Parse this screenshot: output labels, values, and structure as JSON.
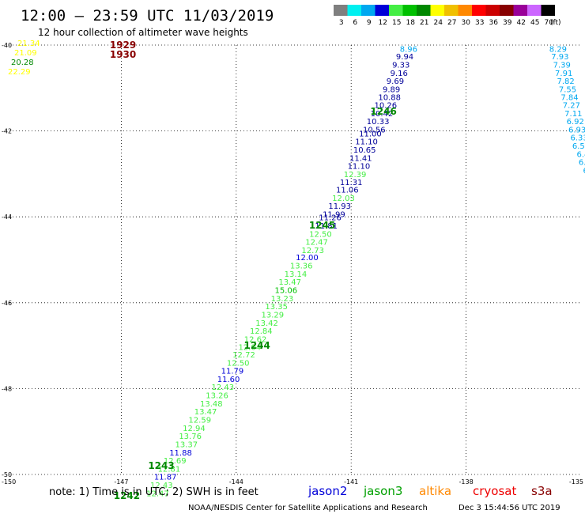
{
  "header": {
    "title": "12:00 – 23:59 UTC 11/03/2019",
    "subtitle": "12 hour collection of altimeter wave heights"
  },
  "legend": {
    "unit": "(ft)",
    "bins": [
      {
        "label": "3",
        "color": "#7f7f7f"
      },
      {
        "label": "6",
        "color": "#00f0f0"
      },
      {
        "label": "9",
        "color": "#00a8f0"
      },
      {
        "label": "12",
        "color": "#0000d8"
      },
      {
        "label": "15",
        "color": "#44ee44"
      },
      {
        "label": "18",
        "color": "#00c000"
      },
      {
        "label": "21",
        "color": "#008800"
      },
      {
        "label": "24",
        "color": "#ffff00"
      },
      {
        "label": "27",
        "color": "#f0c000"
      },
      {
        "label": "30",
        "color": "#ff8800"
      },
      {
        "label": "33",
        "color": "#ff0000"
      },
      {
        "label": "36",
        "color": "#cc0000"
      },
      {
        "label": "39",
        "color": "#880000"
      },
      {
        "label": "42",
        "color": "#990099"
      },
      {
        "label": "45",
        "color": "#cc66ff"
      },
      {
        "label": "70",
        "color": "#000000"
      }
    ]
  },
  "axes": {
    "lat_labels": [
      "-40",
      "-42",
      "-44",
      "-46",
      "-48",
      "-50"
    ],
    "lon_labels": [
      "-150",
      "-147",
      "-144",
      "-141",
      "-138",
      "-135"
    ]
  },
  "chart_data": {
    "type": "scatter",
    "xlabel": "",
    "ylabel": "",
    "xlim": [
      -150,
      -135
    ],
    "ylim": [
      -50,
      -40
    ],
    "series": [
      {
        "color": "#000099",
        "points": [
          {
            "x": -139.5,
            "y": -40.08,
            "label": "8.96",
            "color": "#00a8f0"
          },
          {
            "x": -139.6,
            "y": -40.26,
            "label": "9.94"
          },
          {
            "x": -139.7,
            "y": -40.45,
            "label": "9.33"
          },
          {
            "x": -139.75,
            "y": -40.64,
            "label": "9.16"
          },
          {
            "x": -139.85,
            "y": -40.83,
            "label": "9.69"
          },
          {
            "x": -139.95,
            "y": -41.02,
            "label": "9.89"
          },
          {
            "x": -140.0,
            "y": -41.21,
            "label": "10.88"
          },
          {
            "x": -140.1,
            "y": -41.39,
            "label": "10.26"
          },
          {
            "x": -140.2,
            "y": -41.58,
            "label": "10.42"
          },
          {
            "x": -140.3,
            "y": -41.77,
            "label": "10.33"
          },
          {
            "x": -140.4,
            "y": -41.96,
            "label": "10.56"
          },
          {
            "x": -140.5,
            "y": -42.05,
            "label": "11.00"
          },
          {
            "x": -140.6,
            "y": -42.24,
            "label": "11.10"
          },
          {
            "x": -140.65,
            "y": -42.43,
            "label": "10.65"
          },
          {
            "x": -140.75,
            "y": -42.62,
            "label": "11.41"
          },
          {
            "x": -140.8,
            "y": -42.81,
            "label": "11.10"
          },
          {
            "x": -140.9,
            "y": -43.0,
            "label": "12.39",
            "color": "#44ee44"
          },
          {
            "x": -141.0,
            "y": -43.19,
            "label": "11.31"
          },
          {
            "x": -141.1,
            "y": -43.36,
            "label": "11.06"
          },
          {
            "x": -141.2,
            "y": -43.55,
            "label": "12.03",
            "color": "#44ee44"
          },
          {
            "x": -141.3,
            "y": -43.74,
            "label": "11.93"
          },
          {
            "x": -141.45,
            "y": -43.93,
            "label": "11.99"
          },
          {
            "x": -141.55,
            "y": -44.01,
            "label": "11.26"
          },
          {
            "x": -141.65,
            "y": -44.2,
            "label": "11.81"
          }
        ]
      },
      {
        "color": "#44ee44",
        "points": [
          {
            "x": -141.8,
            "y": -44.39,
            "label": "12.50"
          },
          {
            "x": -141.9,
            "y": -44.58,
            "label": "12.47"
          },
          {
            "x": -142.0,
            "y": -44.77,
            "label": "12.73"
          },
          {
            "x": -142.15,
            "y": -44.94,
            "label": "12.00",
            "color": "#0000d8"
          },
          {
            "x": -142.3,
            "y": -45.13,
            "label": "13.36"
          },
          {
            "x": -142.45,
            "y": -45.32,
            "label": "13.14"
          },
          {
            "x": -142.6,
            "y": -45.51,
            "label": "13.47"
          },
          {
            "x": -142.7,
            "y": -45.7,
            "label": "15.06",
            "color": "#00c000"
          },
          {
            "x": -142.8,
            "y": -45.89,
            "label": "13.23"
          },
          {
            "x": -142.95,
            "y": -46.08,
            "label": "13.35"
          },
          {
            "x": -143.05,
            "y": -46.27,
            "label": "13.29"
          },
          {
            "x": -143.2,
            "y": -46.46,
            "label": "13.42"
          },
          {
            "x": -143.35,
            "y": -46.65,
            "label": "12.84"
          },
          {
            "x": -143.5,
            "y": -46.84,
            "label": "12.62"
          },
          {
            "x": -143.65,
            "y": -47.03,
            "label": "12.04"
          },
          {
            "x": -143.8,
            "y": -47.2,
            "label": "12.72"
          },
          {
            "x": -143.95,
            "y": -47.39,
            "label": "12.50"
          },
          {
            "x": -144.1,
            "y": -47.58,
            "label": "11.79",
            "color": "#0000d8"
          },
          {
            "x": -144.2,
            "y": -47.77,
            "label": "11.60",
            "color": "#0000d8"
          },
          {
            "x": -144.35,
            "y": -47.96,
            "label": "12.43"
          },
          {
            "x": -144.5,
            "y": -48.15,
            "label": "13.26"
          },
          {
            "x": -144.65,
            "y": -48.34,
            "label": "13.48"
          },
          {
            "x": -144.8,
            "y": -48.53,
            "label": "13.47"
          },
          {
            "x": -144.95,
            "y": -48.72,
            "label": "12.59"
          },
          {
            "x": -145.1,
            "y": -48.91,
            "label": "12.94"
          },
          {
            "x": -145.2,
            "y": -49.1,
            "label": "13.76"
          },
          {
            "x": -145.3,
            "y": -49.29,
            "label": "13.37"
          },
          {
            "x": -145.45,
            "y": -49.48,
            "label": "11.88",
            "color": "#0000d8"
          },
          {
            "x": -145.6,
            "y": -49.67,
            "label": "12.69"
          },
          {
            "x": -145.75,
            "y": -49.86,
            "label": "12.81"
          },
          {
            "x": -145.85,
            "y": -50.05,
            "label": "11.87",
            "color": "#0000d8"
          },
          {
            "x": -145.95,
            "y": -50.24,
            "label": "12.43"
          },
          {
            "x": -146.05,
            "y": -50.43,
            "label": "12.47"
          }
        ]
      },
      {
        "color": "#00a8f0",
        "points": [
          {
            "x": -135.6,
            "y": -40.08,
            "label": "8.29"
          },
          {
            "x": -135.55,
            "y": -40.26,
            "label": "7.93"
          },
          {
            "x": -135.5,
            "y": -40.45,
            "label": "7.39"
          },
          {
            "x": -135.45,
            "y": -40.64,
            "label": "7.91"
          },
          {
            "x": -135.4,
            "y": -40.83,
            "label": "7.82"
          },
          {
            "x": -135.35,
            "y": -41.02,
            "label": "7.55"
          },
          {
            "x": -135.3,
            "y": -41.21,
            "label": "7.84"
          },
          {
            "x": -135.25,
            "y": -41.39,
            "label": "7.27"
          },
          {
            "x": -135.2,
            "y": -41.58,
            "label": "7.11"
          },
          {
            "x": -135.15,
            "y": -41.77,
            "label": "6.92"
          },
          {
            "x": -135.1,
            "y": -41.96,
            "label": "6.93"
          },
          {
            "x": -135.05,
            "y": -42.15,
            "label": "6.33"
          },
          {
            "x": -135.0,
            "y": -42.34,
            "label": "6.56"
          },
          {
            "x": -134.95,
            "y": -42.53,
            "label": "6.4"
          },
          {
            "x": -134.9,
            "y": -42.72,
            "label": "6.3"
          },
          {
            "x": -134.85,
            "y": -42.91,
            "label": "6."
          },
          {
            "x": -134.8,
            "y": -43.1,
            "label": "5"
          }
        ]
      }
    ],
    "corner_values": [
      {
        "label": "21.34",
        "color": "#ffff00"
      },
      {
        "label": "21.09",
        "color": "#ffff00"
      },
      {
        "label": "20.28",
        "color": "#008800"
      },
      {
        "label": "22.29",
        "color": "#ffff00"
      }
    ],
    "time_marks": [
      {
        "label": "1929",
        "color": "#880000",
        "x": -147.3,
        "y": -40.0
      },
      {
        "label": "1930",
        "color": "#880000",
        "x": -147.3,
        "y": -40.22
      },
      {
        "label": "1246",
        "color": "#008800",
        "x": -140.5,
        "y": -41.55
      },
      {
        "label": "1245",
        "color": "#008800",
        "x": -142.1,
        "y": -44.2
      },
      {
        "label": "1244",
        "color": "#008800",
        "x": -143.8,
        "y": -47.0
      },
      {
        "label": "1243",
        "color": "#008800",
        "x": -146.3,
        "y": -49.8
      },
      {
        "label": "1242",
        "color": "#008800",
        "x": -147.2,
        "y": -50.5
      }
    ]
  },
  "note": {
    "text": "note:  1) Time is in UTC;  2) SWH is in feet",
    "satellites": [
      {
        "label": "jason2",
        "color": "#0000d8"
      },
      {
        "label": "jason3",
        "color": "#00a000"
      },
      {
        "label": "altika",
        "color": "#ff8800"
      },
      {
        "label": "cryosat",
        "color": "#ee0000"
      },
      {
        "label": "s3a",
        "color": "#880000"
      }
    ]
  },
  "footer": {
    "credit": "NOAA/NESDIS Center for Satellite Applications and Research",
    "timestamp": "Dec  3 15:44:56 UTC 2019"
  }
}
